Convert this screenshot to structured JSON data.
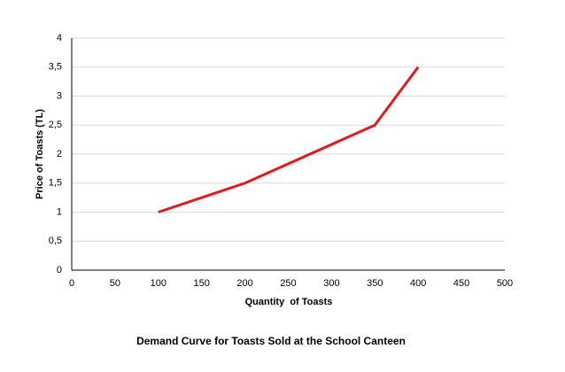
{
  "chart_data": {
    "type": "line",
    "title": "Demand Curve for Toasts Sold at the School Canteen",
    "x_label": "Quantity  of Toasts",
    "y_label": "Price of Toasts (TL)",
    "x": [
      100,
      200,
      350,
      400
    ],
    "values": [
      1,
      1.5,
      2.5,
      3.5
    ],
    "color": "#e31a1c",
    "xlim": [
      0,
      500
    ],
    "xticks": [
      0,
      50,
      100,
      150,
      200,
      250,
      300,
      350,
      400,
      450,
      500
    ],
    "ylim": [
      0,
      4
    ],
    "yticks": [
      0,
      {
        "value": 0.5,
        "label": "0,5"
      },
      1,
      {
        "value": 1.5,
        "label": "1,5"
      },
      2,
      {
        "value": 2.5,
        "label": "2,5"
      },
      3,
      {
        "value": 3.5,
        "label": "3,5"
      },
      4
    ],
    "grid": true
  }
}
